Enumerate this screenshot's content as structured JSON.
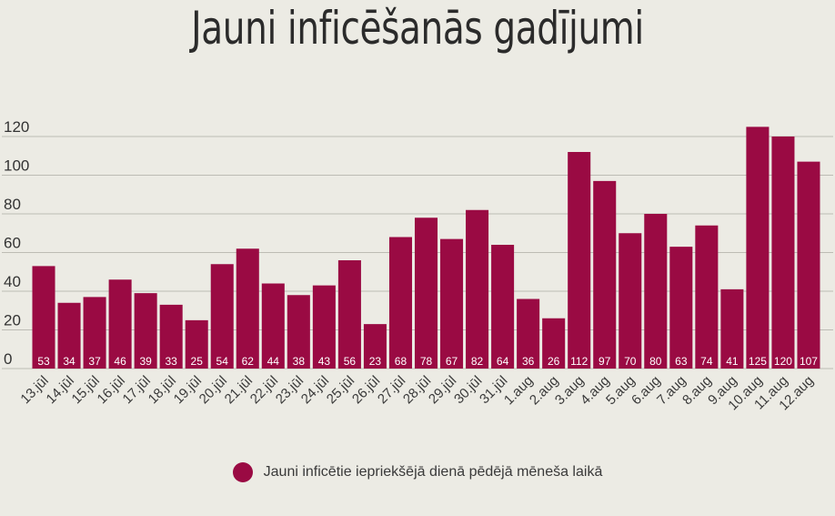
{
  "chart_data": {
    "type": "bar",
    "title": "Jauni inficēšanās gadījumi",
    "categories": [
      "13.jūl",
      "14.jūl",
      "15.jūl",
      "16.jūl",
      "17.jūl",
      "18.jūl",
      "19.jūl",
      "20.jūl",
      "21.jūl",
      "22.jūl",
      "23.jūl",
      "24.jūl",
      "25.jūl",
      "26.jūl",
      "27.jūl",
      "28.jūl",
      "29.jūl",
      "30.jūl",
      "31.jūl",
      "1.aug",
      "2.aug",
      "3.aug",
      "4.aug",
      "5.aug",
      "6.aug",
      "7.aug",
      "8.aug",
      "9.aug",
      "10.aug",
      "11.aug",
      "12.aug"
    ],
    "series": [
      {
        "name": "Jauni inficētie iepriekšējā dienā pēdējā mēneša laikā",
        "values": [
          53,
          34,
          37,
          46,
          39,
          33,
          25,
          54,
          62,
          44,
          38,
          43,
          56,
          23,
          68,
          78,
          67,
          82,
          64,
          36,
          26,
          112,
          97,
          70,
          80,
          63,
          74,
          41,
          125,
          120,
          107
        ],
        "color": "#9a0a43"
      }
    ],
    "ylim": [
      0,
      120
    ],
    "yticks": [
      0,
      20,
      40,
      60,
      80,
      100,
      120
    ],
    "grid": true,
    "legend": "bottom-center"
  }
}
